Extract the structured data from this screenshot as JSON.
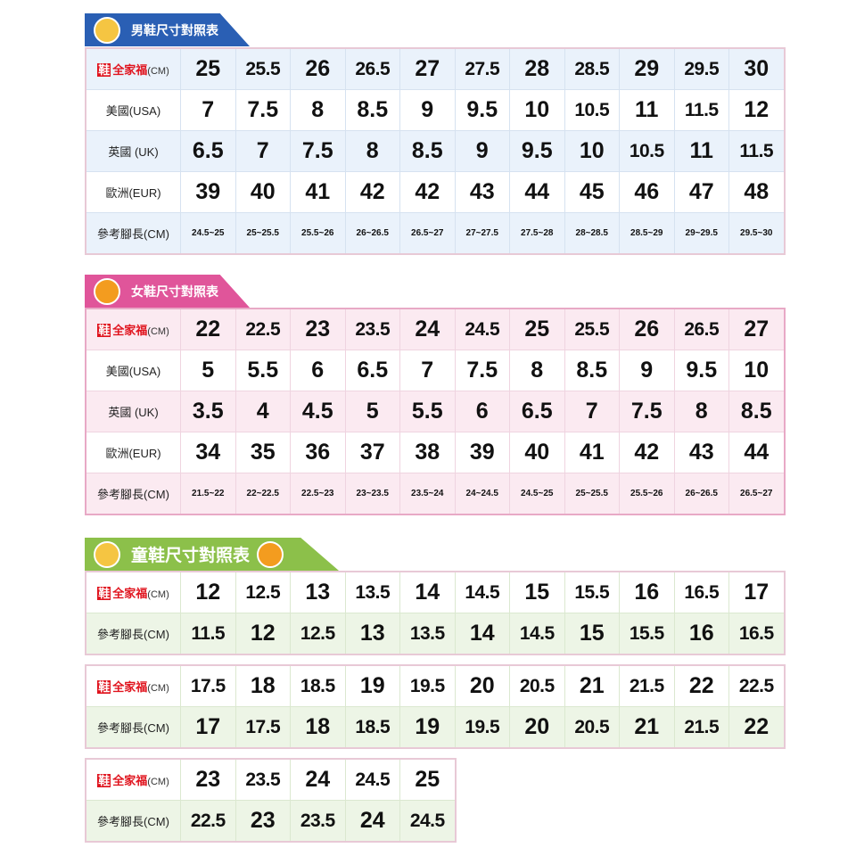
{
  "colors": {
    "men_tab": "#2a5fb4",
    "women_tab": "#e0559a",
    "kids_tab": "#8cc04a",
    "logo_red": "#e0141e"
  },
  "logo": {
    "box": "鞋",
    "text": "全家福",
    "unit": "(CM)"
  },
  "men": {
    "title": "男鞋尺寸對照表",
    "rows": [
      {
        "label": "LOGO",
        "values": [
          "25",
          "25.5",
          "26",
          "26.5",
          "27",
          "27.5",
          "28",
          "28.5",
          "29",
          "29.5",
          "30"
        ]
      },
      {
        "label": "美國(USA)",
        "values": [
          "7",
          "7.5",
          "8",
          "8.5",
          "9",
          "9.5",
          "10",
          "10.5",
          "11",
          "11.5",
          "12"
        ]
      },
      {
        "label": "英國 (UK)",
        "values": [
          "6.5",
          "7",
          "7.5",
          "8",
          "8.5",
          "9",
          "9.5",
          "10",
          "10.5",
          "11",
          "11.5"
        ]
      },
      {
        "label": "歐洲(EUR)",
        "values": [
          "39",
          "40",
          "41",
          "42",
          "42",
          "43",
          "44",
          "45",
          "46",
          "47",
          "48"
        ]
      },
      {
        "label": "參考腳長(CM)",
        "small": true,
        "values": [
          "24.5~25",
          "25~25.5",
          "25.5~26",
          "26~26.5",
          "26.5~27",
          "27~27.5",
          "27.5~28",
          "28~28.5",
          "28.5~29",
          "29~29.5",
          "29.5~30"
        ]
      }
    ]
  },
  "women": {
    "title": "女鞋尺寸對照表",
    "rows": [
      {
        "label": "LOGO",
        "values": [
          "22",
          "22.5",
          "23",
          "23.5",
          "24",
          "24.5",
          "25",
          "25.5",
          "26",
          "26.5",
          "27"
        ]
      },
      {
        "label": "美國(USA)",
        "values": [
          "5",
          "5.5",
          "6",
          "6.5",
          "7",
          "7.5",
          "8",
          "8.5",
          "9",
          "9.5",
          "10"
        ]
      },
      {
        "label": "英國 (UK)",
        "values": [
          "3.5",
          "4",
          "4.5",
          "5",
          "5.5",
          "6",
          "6.5",
          "7",
          "7.5",
          "8",
          "8.5"
        ]
      },
      {
        "label": "歐洲(EUR)",
        "values": [
          "34",
          "35",
          "36",
          "37",
          "38",
          "39",
          "40",
          "41",
          "42",
          "43",
          "44"
        ]
      },
      {
        "label": "參考腳長(CM)",
        "small": true,
        "values": [
          "21.5~22",
          "22~22.5",
          "22.5~23",
          "23~23.5",
          "23.5~24",
          "24~24.5",
          "24.5~25",
          "25~25.5",
          "25.5~26",
          "26~26.5",
          "26.5~27"
        ]
      }
    ]
  },
  "kids": {
    "title": "童鞋尺寸對照表",
    "tables": [
      [
        {
          "label": "LOGO",
          "values": [
            "12",
            "12.5",
            "13",
            "13.5",
            "14",
            "14.5",
            "15",
            "15.5",
            "16",
            "16.5",
            "17"
          ]
        },
        {
          "label": "參考腳長(CM)",
          "values": [
            "11.5",
            "12",
            "12.5",
            "13",
            "13.5",
            "14",
            "14.5",
            "15",
            "15.5",
            "16",
            "16.5"
          ]
        }
      ],
      [
        {
          "label": "LOGO",
          "values": [
            "17.5",
            "18",
            "18.5",
            "19",
            "19.5",
            "20",
            "20.5",
            "21",
            "21.5",
            "22",
            "22.5"
          ]
        },
        {
          "label": "參考腳長(CM)",
          "values": [
            "17",
            "17.5",
            "18",
            "18.5",
            "19",
            "19.5",
            "20",
            "20.5",
            "21",
            "21.5",
            "22"
          ]
        }
      ],
      [
        {
          "label": "LOGO",
          "values": [
            "23",
            "23.5",
            "24",
            "24.5",
            "25"
          ]
        },
        {
          "label": "參考腳長(CM)",
          "values": [
            "22.5",
            "23",
            "23.5",
            "24",
            "24.5"
          ]
        }
      ]
    ]
  }
}
